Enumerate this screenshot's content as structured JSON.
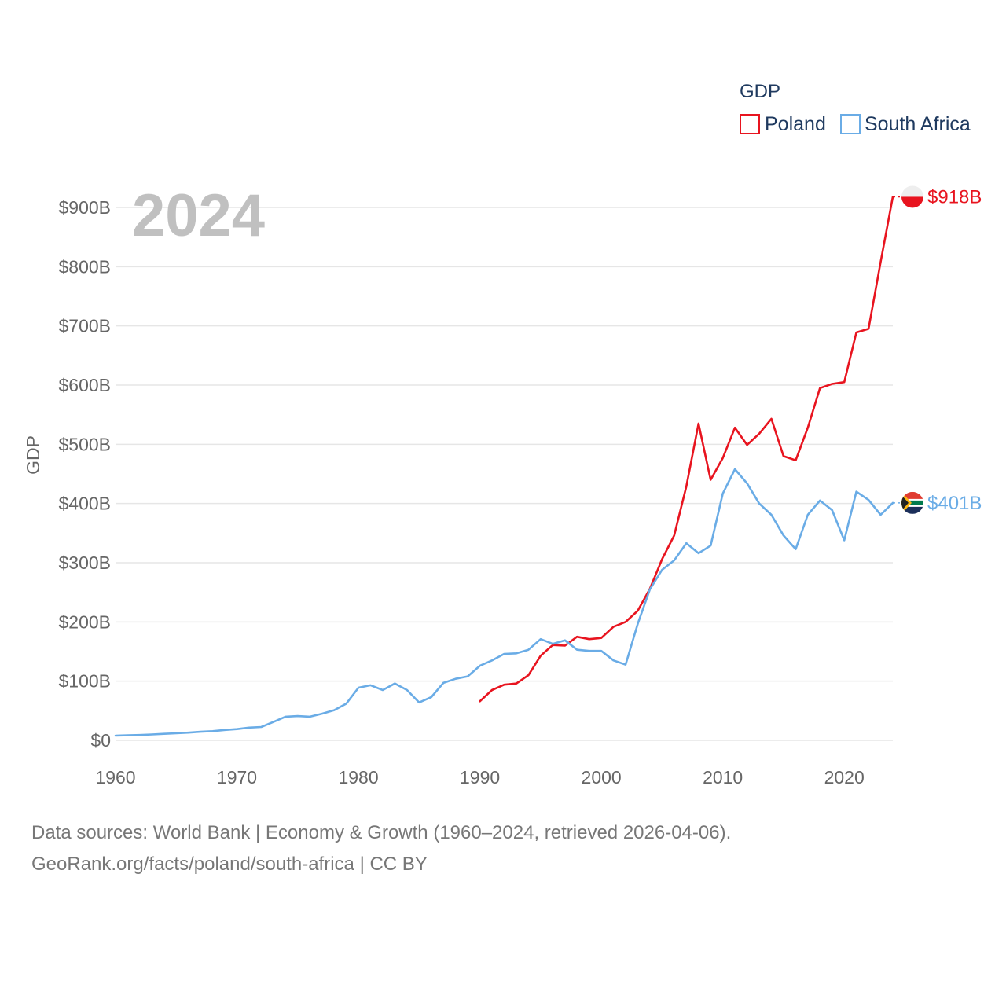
{
  "chart_data": {
    "type": "line",
    "legend_title": "GDP",
    "ylabel": "GDP",
    "year_label": "2024",
    "xlim": [
      1960,
      2024
    ],
    "ylim": [
      0,
      900
    ],
    "x_ticks": [
      1960,
      1970,
      1980,
      1990,
      2000,
      2010,
      2020
    ],
    "x_tick_labels": [
      "1960",
      "1970",
      "1980",
      "1990",
      "2000",
      "2010",
      "2020"
    ],
    "y_ticks": [
      0,
      100,
      200,
      300,
      400,
      500,
      600,
      700,
      800,
      900
    ],
    "y_tick_labels": [
      "$0",
      "$100B",
      "$200B",
      "$300B",
      "$400B",
      "$500B",
      "$600B",
      "$700B",
      "$800B",
      "$900B"
    ],
    "unit": "billion USD",
    "series": [
      {
        "name": "Poland",
        "color": "#e8141f",
        "end_label": "$918B",
        "flag": "poland-flag-icon",
        "points": [
          [
            1990,
            66
          ],
          [
            1991,
            85
          ],
          [
            1992,
            94
          ],
          [
            1993,
            96
          ],
          [
            1994,
            110
          ],
          [
            1995,
            143
          ],
          [
            1996,
            161
          ],
          [
            1997,
            160
          ],
          [
            1998,
            175
          ],
          [
            1999,
            171
          ],
          [
            2000,
            173
          ],
          [
            2001,
            192
          ],
          [
            2002,
            200
          ],
          [
            2003,
            219
          ],
          [
            2004,
            256
          ],
          [
            2005,
            306
          ],
          [
            2006,
            346
          ],
          [
            2007,
            429
          ],
          [
            2008,
            535
          ],
          [
            2009,
            440
          ],
          [
            2010,
            477
          ],
          [
            2011,
            528
          ],
          [
            2012,
            499
          ],
          [
            2013,
            518
          ],
          [
            2014,
            543
          ],
          [
            2015,
            480
          ],
          [
            2016,
            473
          ],
          [
            2017,
            528
          ],
          [
            2018,
            595
          ],
          [
            2019,
            602
          ],
          [
            2020,
            605
          ],
          [
            2021,
            689
          ],
          [
            2022,
            695
          ],
          [
            2023,
            808
          ],
          [
            2024,
            918
          ]
        ]
      },
      {
        "name": "South Africa",
        "color": "#6aace6",
        "end_label": "$401B",
        "flag": "south-africa-flag-icon",
        "points": [
          [
            1960,
            8
          ],
          [
            1961,
            8.5
          ],
          [
            1962,
            9
          ],
          [
            1963,
            10
          ],
          [
            1964,
            11
          ],
          [
            1965,
            12
          ],
          [
            1966,
            13
          ],
          [
            1967,
            14.5
          ],
          [
            1968,
            15.5
          ],
          [
            1969,
            17.5
          ],
          [
            1970,
            19
          ],
          [
            1971,
            21.5
          ],
          [
            1972,
            22.5
          ],
          [
            1973,
            31
          ],
          [
            1974,
            40
          ],
          [
            1975,
            41
          ],
          [
            1976,
            40
          ],
          [
            1977,
            45
          ],
          [
            1978,
            51
          ],
          [
            1979,
            62
          ],
          [
            1980,
            89
          ],
          [
            1981,
            93
          ],
          [
            1982,
            85
          ],
          [
            1983,
            96
          ],
          [
            1984,
            85
          ],
          [
            1985,
            64
          ],
          [
            1986,
            73
          ],
          [
            1987,
            97
          ],
          [
            1988,
            104
          ],
          [
            1989,
            108
          ],
          [
            1990,
            126
          ],
          [
            1991,
            135
          ],
          [
            1992,
            146
          ],
          [
            1993,
            147
          ],
          [
            1994,
            153
          ],
          [
            1995,
            171
          ],
          [
            1996,
            163
          ],
          [
            1997,
            169
          ],
          [
            1998,
            153
          ],
          [
            1999,
            151
          ],
          [
            2000,
            151
          ],
          [
            2001,
            135
          ],
          [
            2002,
            128
          ],
          [
            2003,
            197
          ],
          [
            2004,
            255
          ],
          [
            2005,
            288
          ],
          [
            2006,
            304
          ],
          [
            2007,
            333
          ],
          [
            2008,
            316
          ],
          [
            2009,
            329
          ],
          [
            2010,
            417
          ],
          [
            2011,
            458
          ],
          [
            2012,
            434
          ],
          [
            2013,
            400
          ],
          [
            2014,
            381
          ],
          [
            2015,
            346
          ],
          [
            2016,
            323
          ],
          [
            2017,
            381
          ],
          [
            2018,
            405
          ],
          [
            2019,
            389
          ],
          [
            2020,
            338
          ],
          [
            2021,
            420
          ],
          [
            2022,
            406
          ],
          [
            2023,
            381
          ],
          [
            2024,
            401
          ]
        ]
      }
    ]
  },
  "footer": {
    "line1": "Data sources: World Bank | Economy & Growth (1960–2024, retrieved 2026-04-06).",
    "line2": "GeoRank.org/facts/poland/south-africa | CC BY"
  }
}
